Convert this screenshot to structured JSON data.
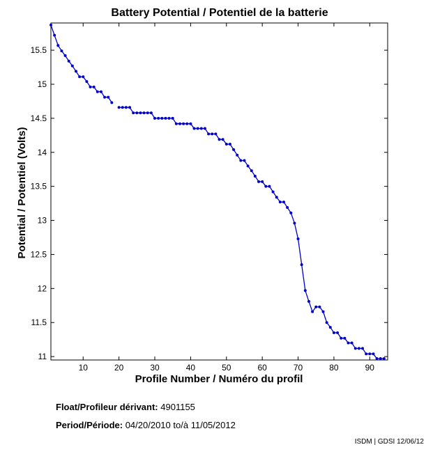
{
  "chart_data": {
    "type": "line",
    "title": "Battery Potential / Potentiel de la batterie",
    "xlabel": "Profile Number / Numéro du profil",
    "ylabel": "Potential / Potentiel (Volts)",
    "xlim": [
      1,
      95
    ],
    "ylim": [
      10.95,
      15.9
    ],
    "xticks": [
      10,
      20,
      30,
      40,
      50,
      60,
      70,
      80,
      90
    ],
    "yticks": [
      11,
      11.5,
      12,
      12.5,
      13,
      13.5,
      14,
      14.5,
      15,
      15.5
    ],
    "grid": false,
    "line_color": "#0000cc",
    "series": [
      {
        "segments": [
          {
            "x": [
              1,
              2,
              3,
              4,
              5,
              6,
              7,
              8,
              9,
              10,
              11,
              12,
              13,
              14,
              15,
              16,
              17,
              18
            ],
            "y": [
              15.87,
              15.72,
              15.57,
              15.49,
              15.42,
              15.34,
              15.27,
              15.19,
              15.11,
              15.11,
              15.04,
              14.96,
              14.96,
              14.89,
              14.89,
              14.81,
              14.81,
              14.73
            ]
          },
          {
            "x": [
              20,
              21,
              22,
              23,
              24,
              25,
              26,
              27,
              28,
              29,
              30,
              31,
              32,
              33,
              34,
              35,
              36,
              37,
              38,
              39,
              40,
              41,
              42,
              43,
              44,
              45,
              46,
              47,
              48,
              49,
              50,
              51,
              52,
              53,
              54,
              55,
              56,
              57,
              58,
              59,
              60,
              61,
              62,
              63,
              64,
              65,
              66,
              67,
              68,
              69,
              70,
              71,
              72,
              73,
              74,
              75,
              76,
              77,
              78,
              79,
              80,
              81,
              82,
              83,
              84,
              85,
              86,
              87,
              88,
              89,
              90,
              91,
              92,
              93,
              94
            ],
            "y": [
              14.66,
              14.66,
              14.66,
              14.66,
              14.58,
              14.58,
              14.58,
              14.58,
              14.58,
              14.58,
              14.5,
              14.5,
              14.5,
              14.5,
              14.5,
              14.5,
              14.42,
              14.42,
              14.42,
              14.42,
              14.42,
              14.35,
              14.35,
              14.35,
              14.35,
              14.27,
              14.27,
              14.27,
              14.19,
              14.19,
              14.12,
              14.12,
              14.04,
              13.96,
              13.88,
              13.88,
              13.8,
              13.73,
              13.65,
              13.57,
              13.57,
              13.5,
              13.5,
              13.42,
              13.34,
              13.27,
              13.27,
              13.19,
              13.11,
              12.96,
              12.73,
              12.35,
              11.97,
              11.81,
              11.66,
              11.73,
              11.73,
              11.66,
              11.5,
              11.43,
              11.35,
              11.35,
              11.27,
              11.27,
              11.2,
              11.2,
              11.12,
              11.12,
              11.12,
              11.04,
              11.04,
              11.04,
              10.97,
              10.97,
              10.97
            ]
          }
        ]
      }
    ]
  },
  "info": {
    "float_label": "Float/Profileur dérivant:",
    "float_value": "4901155",
    "period_label": "Period/Période:",
    "period_start": "04/20/2010",
    "period_sep": "to/à",
    "period_end": "11/05/2012"
  },
  "footer": {
    "credit": "ISDM | GDSI 12/06/12"
  }
}
